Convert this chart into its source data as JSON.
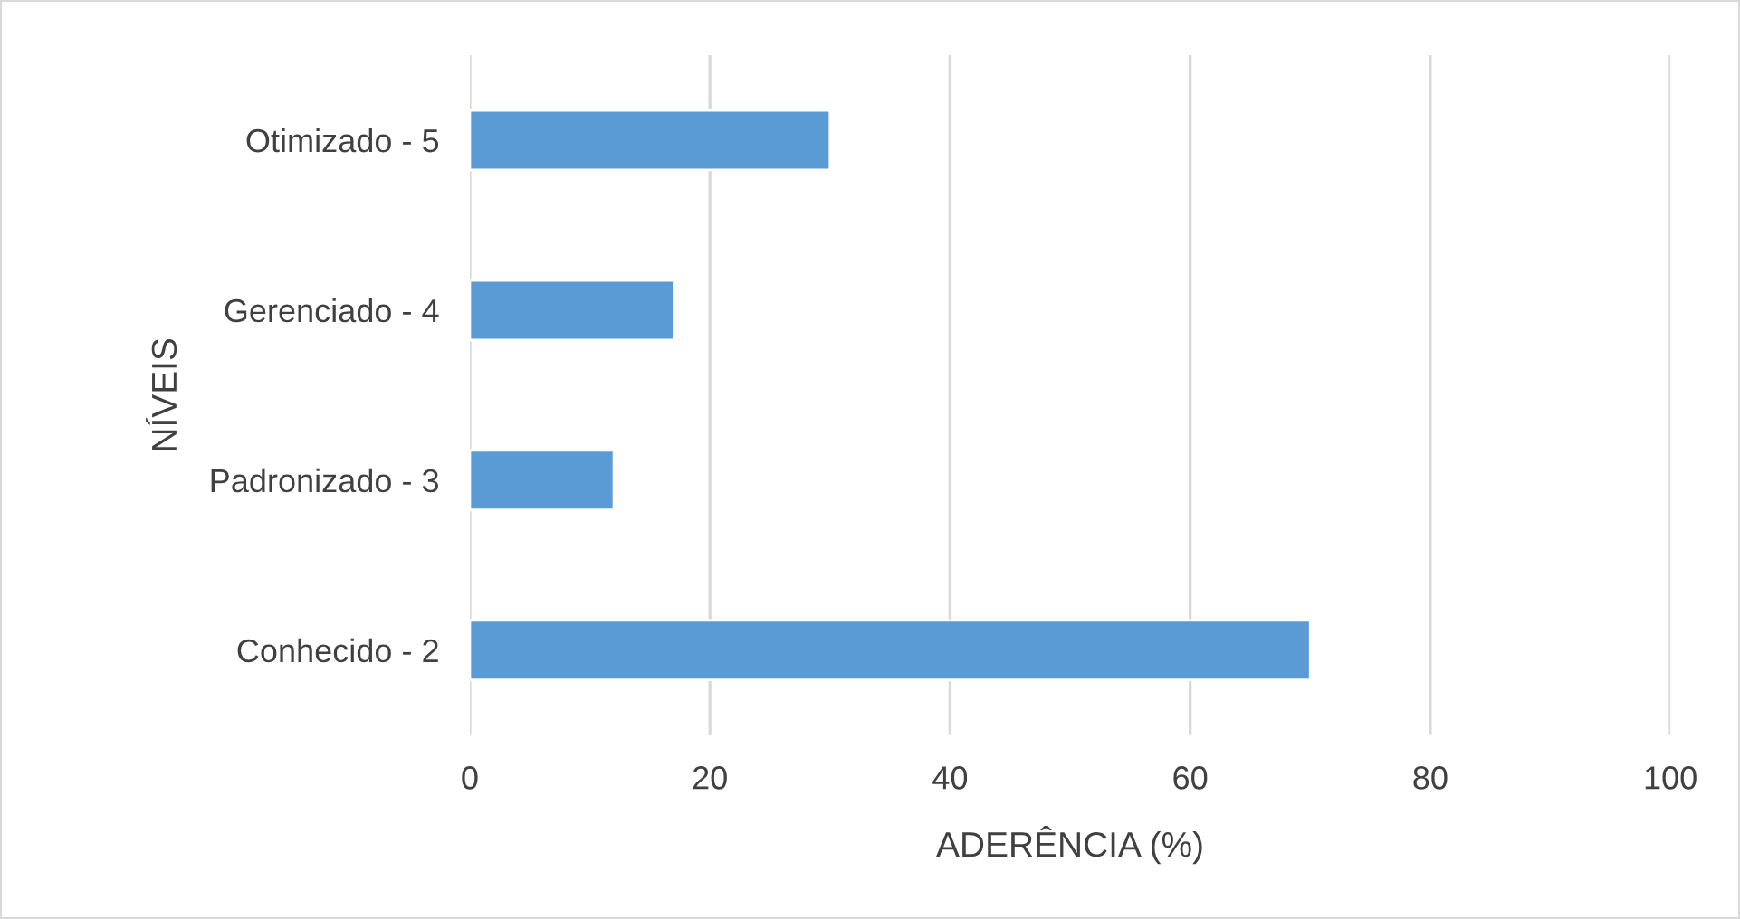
{
  "chart_data": {
    "type": "bar",
    "orientation": "horizontal",
    "categories": [
      "Otimizado - 5",
      "Gerenciado - 4",
      "Padronizado - 3",
      "Conhecido - 2"
    ],
    "values": [
      30,
      17,
      12,
      70
    ],
    "color": "#5b9bd5",
    "xlim": [
      0,
      100
    ],
    "xticks": [
      0,
      20,
      40,
      60,
      80,
      100
    ],
    "grid": "x",
    "xlabel": "ADERÊNCIA (%)",
    "ylabel": "NÍVEIS"
  }
}
